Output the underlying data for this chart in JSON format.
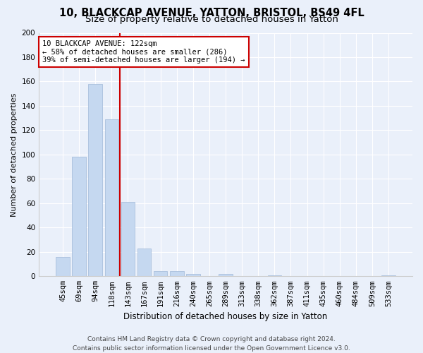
{
  "title1": "10, BLACKCAP AVENUE, YATTON, BRISTOL, BS49 4FL",
  "title2": "Size of property relative to detached houses in Yatton",
  "xlabel": "Distribution of detached houses by size in Yatton",
  "ylabel": "Number of detached properties",
  "categories": [
    "45sqm",
    "69sqm",
    "94sqm",
    "118sqm",
    "143sqm",
    "167sqm",
    "191sqm",
    "216sqm",
    "240sqm",
    "265sqm",
    "289sqm",
    "313sqm",
    "338sqm",
    "362sqm",
    "387sqm",
    "411sqm",
    "435sqm",
    "460sqm",
    "484sqm",
    "509sqm",
    "533sqm"
  ],
  "values": [
    16,
    98,
    158,
    129,
    61,
    23,
    4,
    4,
    2,
    0,
    2,
    0,
    0,
    1,
    0,
    0,
    0,
    0,
    0,
    0,
    1
  ],
  "bar_color": "#c5d8f0",
  "bar_edge_color": "#a0b8d8",
  "property_line_x": 3.5,
  "annotation_text_line1": "10 BLACKCAP AVENUE: 122sqm",
  "annotation_text_line2": "← 58% of detached houses are smaller (286)",
  "annotation_text_line3": "39% of semi-detached houses are larger (194) →",
  "annotation_box_color": "#ffffff",
  "annotation_box_edge": "#cc0000",
  "line_color": "#cc0000",
  "ylim": [
    0,
    200
  ],
  "yticks": [
    0,
    20,
    40,
    60,
    80,
    100,
    120,
    140,
    160,
    180,
    200
  ],
  "background_color": "#eaf0fa",
  "grid_color": "#ffffff",
  "footer1": "Contains HM Land Registry data © Crown copyright and database right 2024.",
  "footer2": "Contains public sector information licensed under the Open Government Licence v3.0.",
  "title1_fontsize": 10.5,
  "title2_fontsize": 9.5,
  "xlabel_fontsize": 8.5,
  "ylabel_fontsize": 8,
  "tick_fontsize": 7.5,
  "annot_fontsize": 7.5,
  "footer_fontsize": 6.5
}
